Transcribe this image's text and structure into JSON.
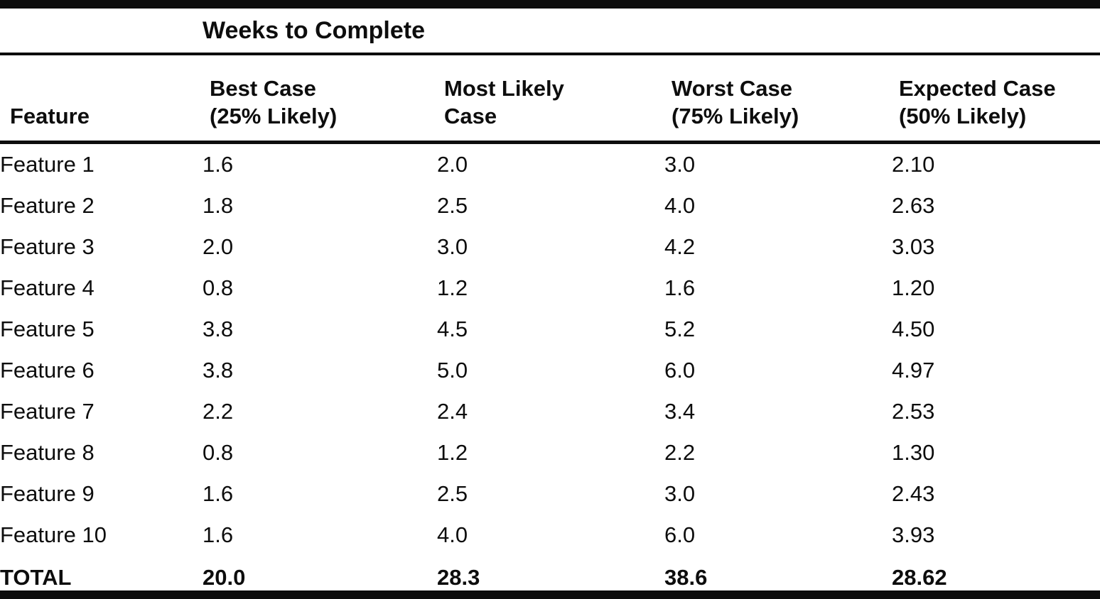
{
  "page": {
    "kind": "scanned-book-table",
    "ink_color": "#0d0d0d",
    "paper_color": "#ffffff"
  },
  "table": {
    "span_header": "Weeks to Complete",
    "feature_column_label": "Feature",
    "columns": [
      {
        "line1": "Best Case",
        "line2": "(25% Likely)"
      },
      {
        "line1": "Most Likely",
        "line2": "Case"
      },
      {
        "line1": "Worst Case",
        "line2": "(75% Likely)"
      },
      {
        "line1": "Expected Case",
        "line2": "(50% Likely)"
      }
    ],
    "rows": [
      {
        "feature": "Feature 1",
        "values": [
          "1.6",
          "2.0",
          "3.0",
          "2.10"
        ]
      },
      {
        "feature": "Feature 2",
        "values": [
          "1.8",
          "2.5",
          "4.0",
          "2.63"
        ]
      },
      {
        "feature": "Feature 3",
        "values": [
          "2.0",
          "3.0",
          "4.2",
          "3.03"
        ]
      },
      {
        "feature": "Feature 4",
        "values": [
          "0.8",
          "1.2",
          "1.6",
          "1.20"
        ]
      },
      {
        "feature": "Feature 5",
        "values": [
          "3.8",
          "4.5",
          "5.2",
          "4.50"
        ]
      },
      {
        "feature": "Feature 6",
        "values": [
          "3.8",
          "5.0",
          "6.0",
          "4.97"
        ]
      },
      {
        "feature": "Feature 7",
        "values": [
          "2.2",
          "2.4",
          "3.4",
          "2.53"
        ]
      },
      {
        "feature": "Feature 8",
        "values": [
          "0.8",
          "1.2",
          "2.2",
          "1.30"
        ]
      },
      {
        "feature": "Feature 9",
        "values": [
          "1.6",
          "2.5",
          "3.0",
          "2.43"
        ]
      },
      {
        "feature": "Feature 10",
        "values": [
          "1.6",
          "4.0",
          "6.0",
          "3.93"
        ]
      }
    ],
    "total_row": {
      "feature": "TOTAL",
      "values": [
        "20.0",
        "28.3",
        "38.6",
        "28.62"
      ]
    }
  },
  "chart_data": {
    "type": "table",
    "title": "Weeks to Complete",
    "columns": [
      "Feature",
      "Best Case (25% Likely)",
      "Most Likely Case",
      "Worst Case (75% Likely)",
      "Expected Case (50% Likely)"
    ],
    "rows": [
      [
        "Feature 1",
        1.6,
        2.0,
        3.0,
        2.1
      ],
      [
        "Feature 2",
        1.8,
        2.5,
        4.0,
        2.63
      ],
      [
        "Feature 3",
        2.0,
        3.0,
        4.2,
        3.03
      ],
      [
        "Feature 4",
        0.8,
        1.2,
        1.6,
        1.2
      ],
      [
        "Feature 5",
        3.8,
        4.5,
        5.2,
        4.5
      ],
      [
        "Feature 6",
        3.8,
        5.0,
        6.0,
        4.97
      ],
      [
        "Feature 7",
        2.2,
        2.4,
        3.4,
        2.53
      ],
      [
        "Feature 8",
        0.8,
        1.2,
        2.2,
        1.3
      ],
      [
        "Feature 9",
        1.6,
        2.5,
        3.0,
        2.43
      ],
      [
        "Feature 10",
        1.6,
        4.0,
        6.0,
        3.93
      ]
    ],
    "totals": [
      "TOTAL",
      20.0,
      28.3,
      38.6,
      28.62
    ]
  }
}
